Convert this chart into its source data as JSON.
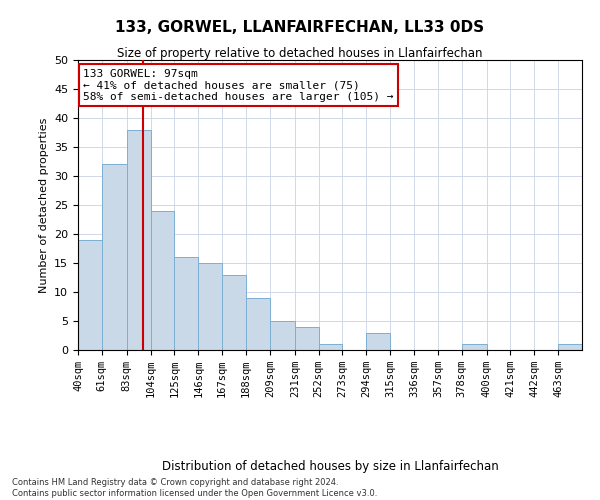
{
  "title": "133, GORWEL, LLANFAIRFECHAN, LL33 0DS",
  "subtitle": "Size of property relative to detached houses in Llanfairfechan",
  "xlabel": "Distribution of detached houses by size in Llanfairfechan",
  "ylabel": "Number of detached properties",
  "categories": [
    "40sqm",
    "61sqm",
    "83sqm",
    "104sqm",
    "125sqm",
    "146sqm",
    "167sqm",
    "188sqm",
    "209sqm",
    "231sqm",
    "252sqm",
    "273sqm",
    "294sqm",
    "315sqm",
    "336sqm",
    "357sqm",
    "378sqm",
    "400sqm",
    "421sqm",
    "442sqm",
    "463sqm"
  ],
  "values": [
    19,
    32,
    38,
    24,
    16,
    15,
    13,
    9,
    5,
    4,
    1,
    0,
    3,
    0,
    0,
    0,
    1,
    0,
    0,
    0,
    1
  ],
  "bar_color": "#c9d9e8",
  "bar_edgecolor": "#7bafd4",
  "red_line_x": 97,
  "bin_edges": [
    40,
    61,
    83,
    104,
    125,
    146,
    167,
    188,
    209,
    231,
    252,
    273,
    294,
    315,
    336,
    357,
    378,
    400,
    421,
    442,
    463,
    484
  ],
  "annotation_title": "133 GORWEL: 97sqm",
  "annotation_line1": "← 41% of detached houses are smaller (75)",
  "annotation_line2": "58% of semi-detached houses are larger (105) →",
  "annotation_box_color": "#ffffff",
  "annotation_box_edgecolor": "#cc0000",
  "ylim": [
    0,
    50
  ],
  "yticks": [
    0,
    5,
    10,
    15,
    20,
    25,
    30,
    35,
    40,
    45,
    50
  ],
  "footnote1": "Contains HM Land Registry data © Crown copyright and database right 2024.",
  "footnote2": "Contains public sector information licensed under the Open Government Licence v3.0.",
  "background_color": "#ffffff",
  "grid_color": "#d0d8e8"
}
